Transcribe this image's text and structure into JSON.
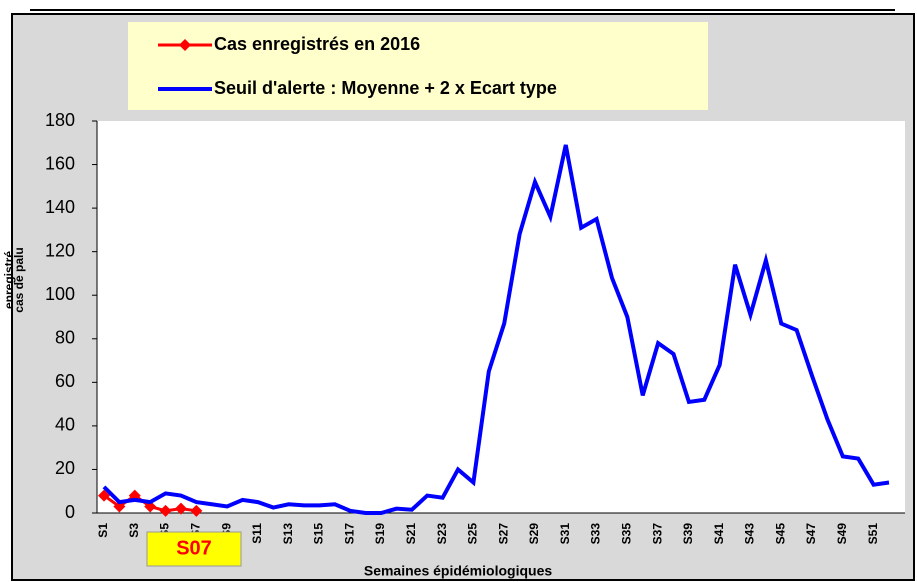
{
  "chart_data": {
    "type": "line",
    "ylabel_lines": [
      "cas de palu",
      "enregistré"
    ],
    "xlabel": "Semaines épidémiologiques",
    "annotation": "S07",
    "categories": [
      "S1",
      null,
      "S3",
      null,
      "S5",
      null,
      "S7",
      null,
      "S9",
      null,
      "S11",
      null,
      "S13",
      null,
      "S15",
      null,
      "S17",
      null,
      "S19",
      null,
      "S21",
      null,
      "S23",
      null,
      "S25",
      null,
      "S27",
      null,
      "S29",
      null,
      "S31",
      null,
      "S33",
      null,
      "S35",
      null,
      "S37",
      null,
      "S39",
      null,
      "S41",
      null,
      "S43",
      null,
      "S45",
      null,
      "S47",
      null,
      "S49",
      null,
      "S51",
      null
    ],
    "series": [
      {
        "name": "Cas enregistrés en 2016",
        "color": "#ff0000",
        "values": [
          8,
          3,
          8,
          3,
          1,
          2,
          1,
          null,
          null,
          null,
          null,
          null,
          null,
          null,
          null,
          null,
          null,
          null,
          null,
          null,
          null,
          null,
          null,
          null,
          null,
          null,
          null,
          null,
          null,
          null,
          null,
          null,
          null,
          null,
          null,
          null,
          null,
          null,
          null,
          null,
          null,
          null,
          null,
          null,
          null,
          null,
          null,
          null,
          null,
          null,
          null,
          null
        ]
      },
      {
        "name": "Seuil d'alerte : Moyenne + 2 x Ecart type",
        "color": "#0000ff",
        "values": [
          12,
          5,
          6,
          5,
          9,
          8,
          5,
          4,
          3,
          6,
          5,
          2.5,
          4,
          3.5,
          3.5,
          4,
          1,
          0,
          0,
          2,
          1.5,
          8,
          7,
          20,
          14,
          65,
          87,
          128,
          152,
          136,
          169,
          131,
          135,
          108,
          90,
          54,
          78,
          73,
          51,
          52,
          68,
          114,
          91,
          116,
          87,
          84,
          63,
          43,
          26,
          25,
          13,
          14
        ]
      }
    ],
    "ylim": [
      0,
      180
    ],
    "yticks": [
      0,
      20,
      40,
      60,
      80,
      100,
      120,
      140,
      160,
      180
    ]
  }
}
